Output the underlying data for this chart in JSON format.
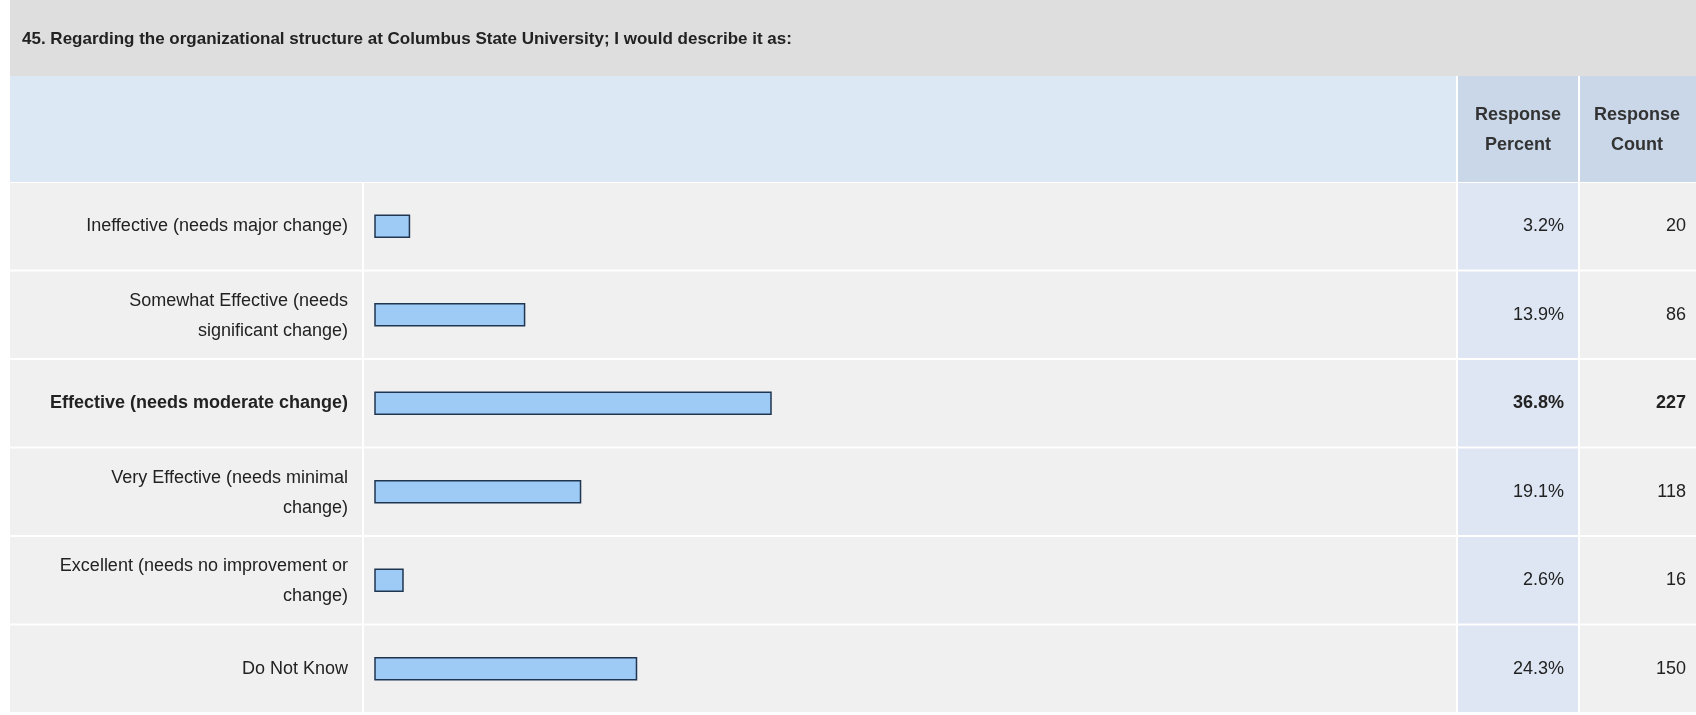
{
  "chart_data": {
    "type": "bar",
    "orientation": "horizontal",
    "title": "45. Regarding the organizational structure at Columbus State University; I would describe it as:",
    "categories": [
      "Ineffective (needs major change)",
      "Somewhat Effective (needs significant change)",
      "Effective (needs moderate change)",
      "Very Effective (needs minimal change)",
      "Excellent (needs no improvement or change)",
      "Do Not Know"
    ],
    "values": [
      3.2,
      13.9,
      36.8,
      19.1,
      2.6,
      24.3
    ],
    "value_labels": [
      "3.2%",
      "13.9%",
      "36.8%",
      "19.1%",
      "2.6%",
      "24.3%"
    ],
    "color": "#9ecbf5",
    "tick_labels": "y",
    "annotations": [
      "Response Percent",
      "Response Count",
      "20",
      "86",
      "227",
      "118",
      "16",
      "150"
    ]
  }
}
